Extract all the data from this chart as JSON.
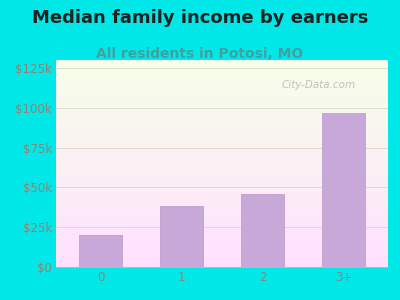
{
  "title": "Median family income by earners",
  "subtitle": "All residents in Potosi, MO",
  "categories": [
    "0",
    "1",
    "2",
    "3+"
  ],
  "values": [
    20000,
    38000,
    46000,
    97000
  ],
  "bar_color": "#c8a8d8",
  "bar_edge_color": "#b898c8",
  "background_color": "#00e8e8",
  "title_color": "#222222",
  "subtitle_color": "#44a0a0",
  "axis_label_color": "#888877",
  "ytick_labels": [
    "$0",
    "$25k",
    "$50k",
    "$75k",
    "$100k",
    "$125k"
  ],
  "ytick_values": [
    0,
    25000,
    50000,
    75000,
    100000,
    125000
  ],
  "ylim": [
    0,
    130000
  ],
  "watermark": "City-Data.com",
  "title_fontsize": 13,
  "subtitle_fontsize": 10,
  "tick_fontsize": 8.5,
  "grid_color": "#ddddcc",
  "bottom_spine_color": "#bbbbaa"
}
